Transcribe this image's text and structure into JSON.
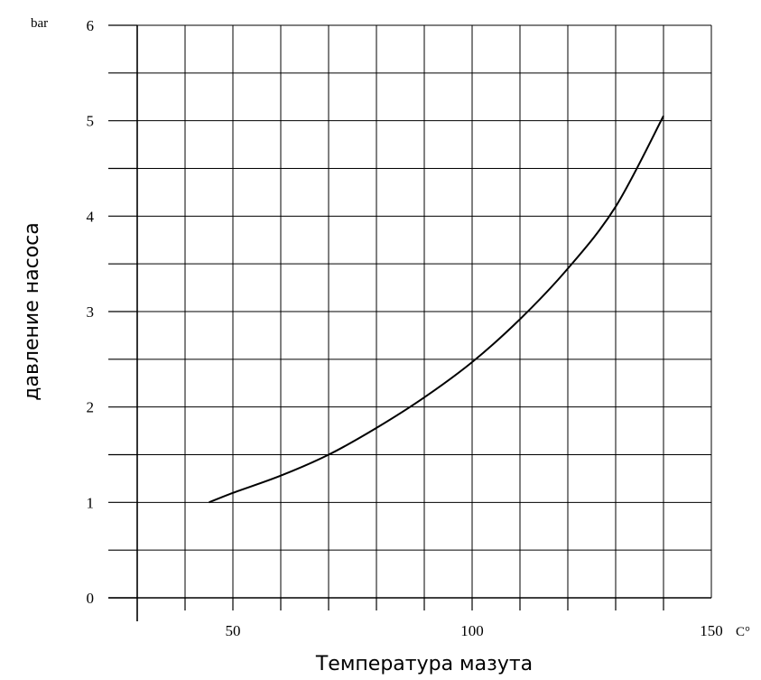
{
  "chart_data": {
    "type": "line",
    "title": "",
    "xlabel": "Температура мазута",
    "ylabel": "давление насоса",
    "x_unit": "C°",
    "y_unit": "bar",
    "xlim": [
      30,
      150
    ],
    "ylim": [
      0,
      6
    ],
    "x_ticks": [
      50,
      100,
      150
    ],
    "y_ticks": [
      0,
      1,
      2,
      3,
      4,
      5,
      6
    ],
    "grid": true,
    "series": [
      {
        "x": [
          45,
          50,
          60,
          70,
          80,
          90,
          100,
          110,
          120,
          130,
          140
        ],
        "y": [
          1.0,
          1.1,
          1.28,
          1.5,
          1.78,
          2.1,
          2.47,
          2.92,
          3.45,
          4.1,
          5.05
        ]
      }
    ]
  }
}
